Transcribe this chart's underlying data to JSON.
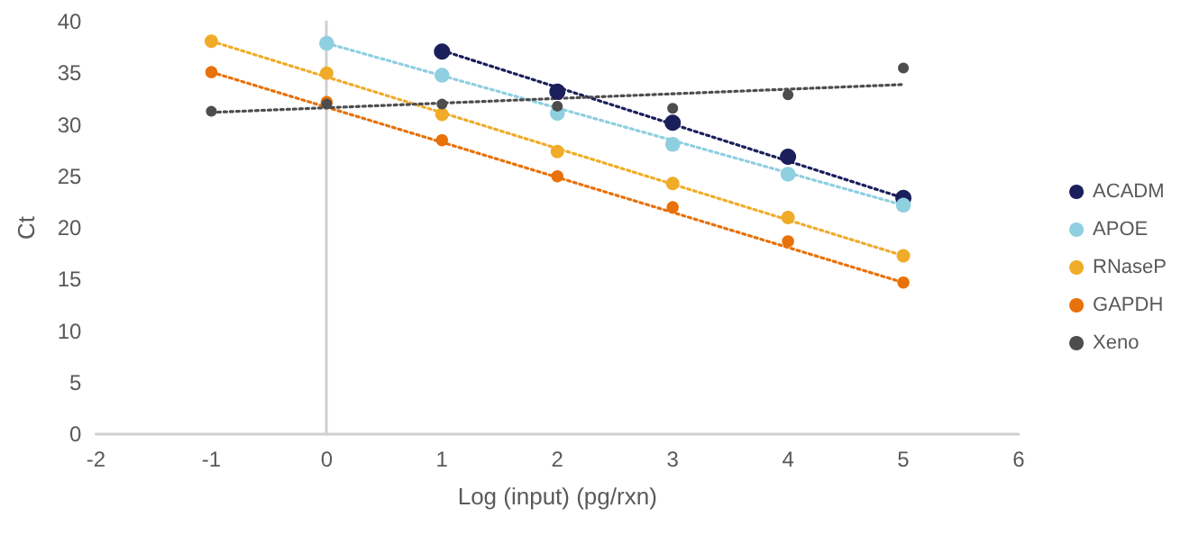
{
  "chart_data": {
    "type": "scatter",
    "xlabel": "Log (input) (pg/rxn)",
    "ylabel": "Ct",
    "xlim": [
      -2,
      6
    ],
    "xticks": [
      -2,
      -1,
      0,
      1,
      2,
      3,
      4,
      5,
      6
    ],
    "ylim": [
      0,
      40
    ],
    "yticks": [
      0,
      5,
      10,
      15,
      20,
      25,
      30,
      35,
      40
    ],
    "legend": "right",
    "marker": "circle",
    "series": [
      {
        "name": "ACADM",
        "color": "#1a1f5c",
        "x": [
          1,
          2,
          3,
          4,
          5
        ],
        "values": [
          37.1,
          33.2,
          30.2,
          26.9,
          22.9
        ]
      },
      {
        "name": "APOE",
        "color": "#8ecfe0",
        "x": [
          0,
          1,
          2,
          3,
          4,
          5
        ],
        "values": [
          37.9,
          34.8,
          31.1,
          28.1,
          25.2,
          22.2
        ]
      },
      {
        "name": "RNaseP",
        "color": "#f0ac28",
        "x": [
          -1,
          0,
          1,
          2,
          3,
          4,
          5
        ],
        "values": [
          38.1,
          35,
          31,
          27.4,
          24.3,
          21,
          17.3
        ]
      },
      {
        "name": "GAPDH",
        "color": "#e8710a",
        "x": [
          -1,
          0,
          1,
          2,
          3,
          4,
          5
        ],
        "values": [
          35.1,
          32.2,
          28.5,
          25,
          22,
          18.7,
          14.7
        ]
      },
      {
        "name": "Xeno",
        "color": "#4d4d4d",
        "x": [
          -1,
          0,
          1,
          2,
          3,
          4,
          5
        ],
        "values": [
          31.3,
          32,
          32,
          31.8,
          31.6,
          32.9,
          35.5
        ]
      },
      {
        "type": "line",
        "color": "#1a1f5c",
        "line_style": "dotted",
        "marker": "none",
        "x": [
          1,
          5
        ],
        "values": [
          37.2,
          22.9
        ]
      },
      {
        "type": "line",
        "color": "#8ecfe0",
        "line_style": "dotted",
        "marker": "none",
        "x": [
          0,
          5
        ],
        "values": [
          37.9,
          22.2
        ]
      },
      {
        "type": "line",
        "color": "#f0ac28",
        "line_style": "dotted",
        "marker": "none",
        "x": [
          -1,
          5
        ],
        "values": [
          38.1,
          17.3
        ]
      },
      {
        "type": "line",
        "color": "#e8710a",
        "line_style": "dotted",
        "marker": "none",
        "x": [
          -1,
          5
        ],
        "values": [
          35.1,
          14.7
        ]
      },
      {
        "type": "line",
        "color": "#4d4d4d",
        "line_style": "dotted",
        "marker": "none",
        "x": [
          -1,
          5
        ],
        "values": [
          31.2,
          33.9
        ]
      }
    ]
  }
}
